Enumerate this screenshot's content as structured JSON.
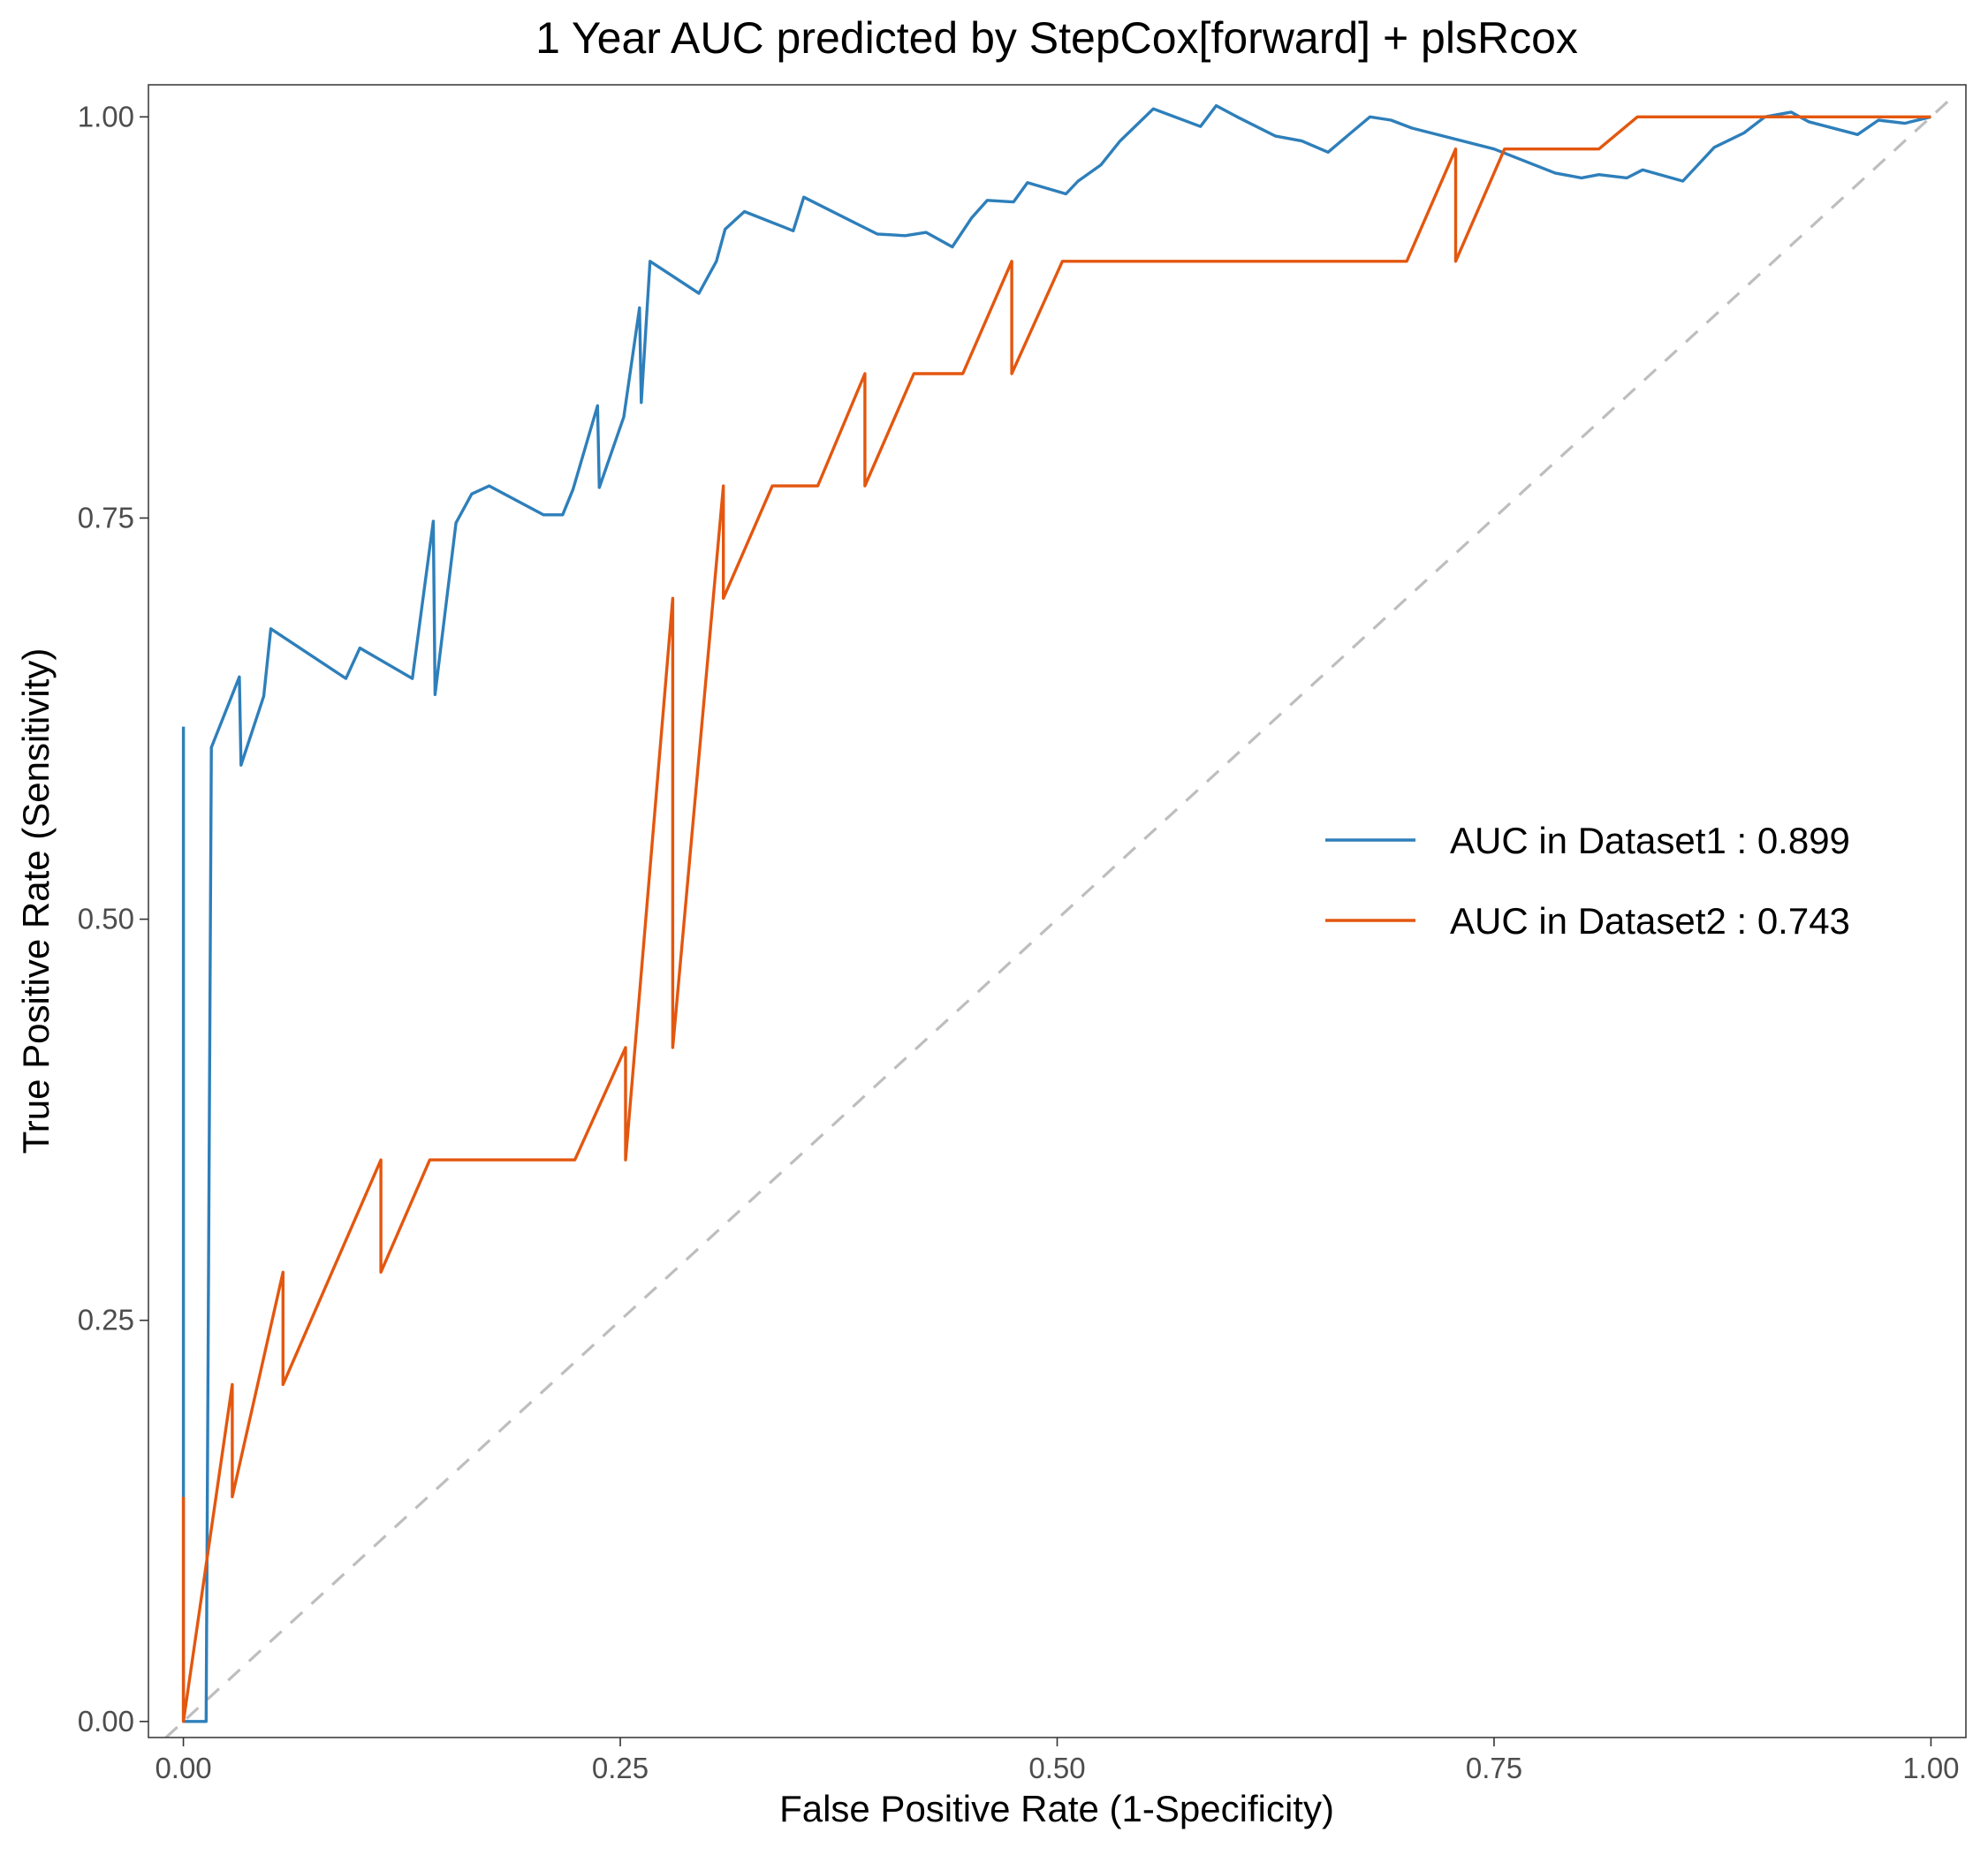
{
  "chart_data": {
    "type": "line",
    "title": "1 Year AUC predicted by StepCox[forward] + plsRcox",
    "xlabel": "False Positive Rate (1-Specificity)",
    "ylabel": "True Positive Rate (Sensitivity)",
    "xlim": [
      -0.02,
      1.02
    ],
    "ylim": [
      -0.01,
      1.02
    ],
    "x_ticks": [
      "0.00",
      "0.25",
      "0.50",
      "0.75",
      "1.00"
    ],
    "y_ticks": [
      "0.00",
      "0.25",
      "0.50",
      "0.75",
      "1.00"
    ],
    "grid": false,
    "legend_position": "right",
    "reference_line": {
      "x": [
        0,
        1
      ],
      "y": [
        0,
        1
      ],
      "color": "#bebebe",
      "style": "dashed"
    },
    "series": [
      {
        "name": "AUC in Dataset1 : 0.899",
        "color": "#2e7fba",
        "x": [
          0,
          0,
          0,
          0.013,
          0.013,
          0.016,
          0.032,
          0.033,
          0.046,
          0.05,
          0.093,
          0.101,
          0.131,
          0.143,
          0.144,
          0.156,
          0.165,
          0.175,
          0.206,
          0.217,
          0.223,
          0.237,
          0.238,
          0.252,
          0.261,
          0.262,
          0.267,
          0.295,
          0.305,
          0.31,
          0.321,
          0.349,
          0.355,
          0.386,
          0.397,
          0.413,
          0.425,
          0.44,
          0.451,
          0.46,
          0.475,
          0.483,
          0.505,
          0.512,
          0.525,
          0.536,
          0.555,
          0.582,
          0.591,
          0.603,
          0.625,
          0.64,
          0.655,
          0.668,
          0.679,
          0.691,
          0.703,
          0.75,
          0.785,
          0.8,
          0.81,
          0.826,
          0.835,
          0.858,
          0.876,
          0.893,
          0.905,
          0.92,
          0.93,
          0.958,
          0.97,
          0.985,
          1
        ],
        "y": [
          0.62,
          0.14,
          0,
          0,
          0,
          0.607,
          0.651,
          0.596,
          0.639,
          0.681,
          0.65,
          0.669,
          0.65,
          0.748,
          0.64,
          0.747,
          0.765,
          0.77,
          0.752,
          0.752,
          0.768,
          0.82,
          0.769,
          0.813,
          0.881,
          0.822,
          0.91,
          0.89,
          0.91,
          0.93,
          0.941,
          0.929,
          0.95,
          0.933,
          0.927,
          0.926,
          0.928,
          0.919,
          0.937,
          0.948,
          0.947,
          0.959,
          0.952,
          0.96,
          0.97,
          0.985,
          1.005,
          0.994,
          1.007,
          1.0,
          0.988,
          0.985,
          0.978,
          0.99,
          1.0,
          0.998,
          0.993,
          0.98,
          0.965,
          0.962,
          0.964,
          0.962,
          0.967,
          0.96,
          0.981,
          0.99,
          1.0,
          1.003,
          0.997,
          0.989,
          0.998,
          0.996,
          1.0
        ]
      },
      {
        "name": "AUC in Dataset2 : 0.743",
        "color": "#e3570f",
        "x": [
          0,
          0,
          0,
          0.028,
          0.028,
          0.028,
          0.057,
          0.057,
          0.113,
          0.113,
          0.141,
          0.224,
          0.253,
          0.253,
          0.28,
          0.28,
          0.309,
          0.309,
          0.337,
          0.363,
          0.39,
          0.39,
          0.418,
          0.446,
          0.474,
          0.474,
          0.503,
          0.56,
          0.7,
          0.728,
          0.728,
          0.756,
          0.81,
          0.832,
          0.858,
          0.886,
          0.943,
          1
        ],
        "y": [
          0.14,
          0,
          0,
          0.21,
          0.21,
          0.14,
          0.28,
          0.21,
          0.35,
          0.28,
          0.35,
          0.35,
          0.42,
          0.35,
          0.7,
          0.42,
          0.77,
          0.7,
          0.77,
          0.77,
          0.84,
          0.77,
          0.84,
          0.84,
          0.91,
          0.84,
          0.91,
          0.91,
          0.91,
          0.98,
          0.91,
          0.98,
          0.98,
          1.0,
          1.0,
          1.0,
          1.0,
          1.0
        ]
      }
    ]
  }
}
